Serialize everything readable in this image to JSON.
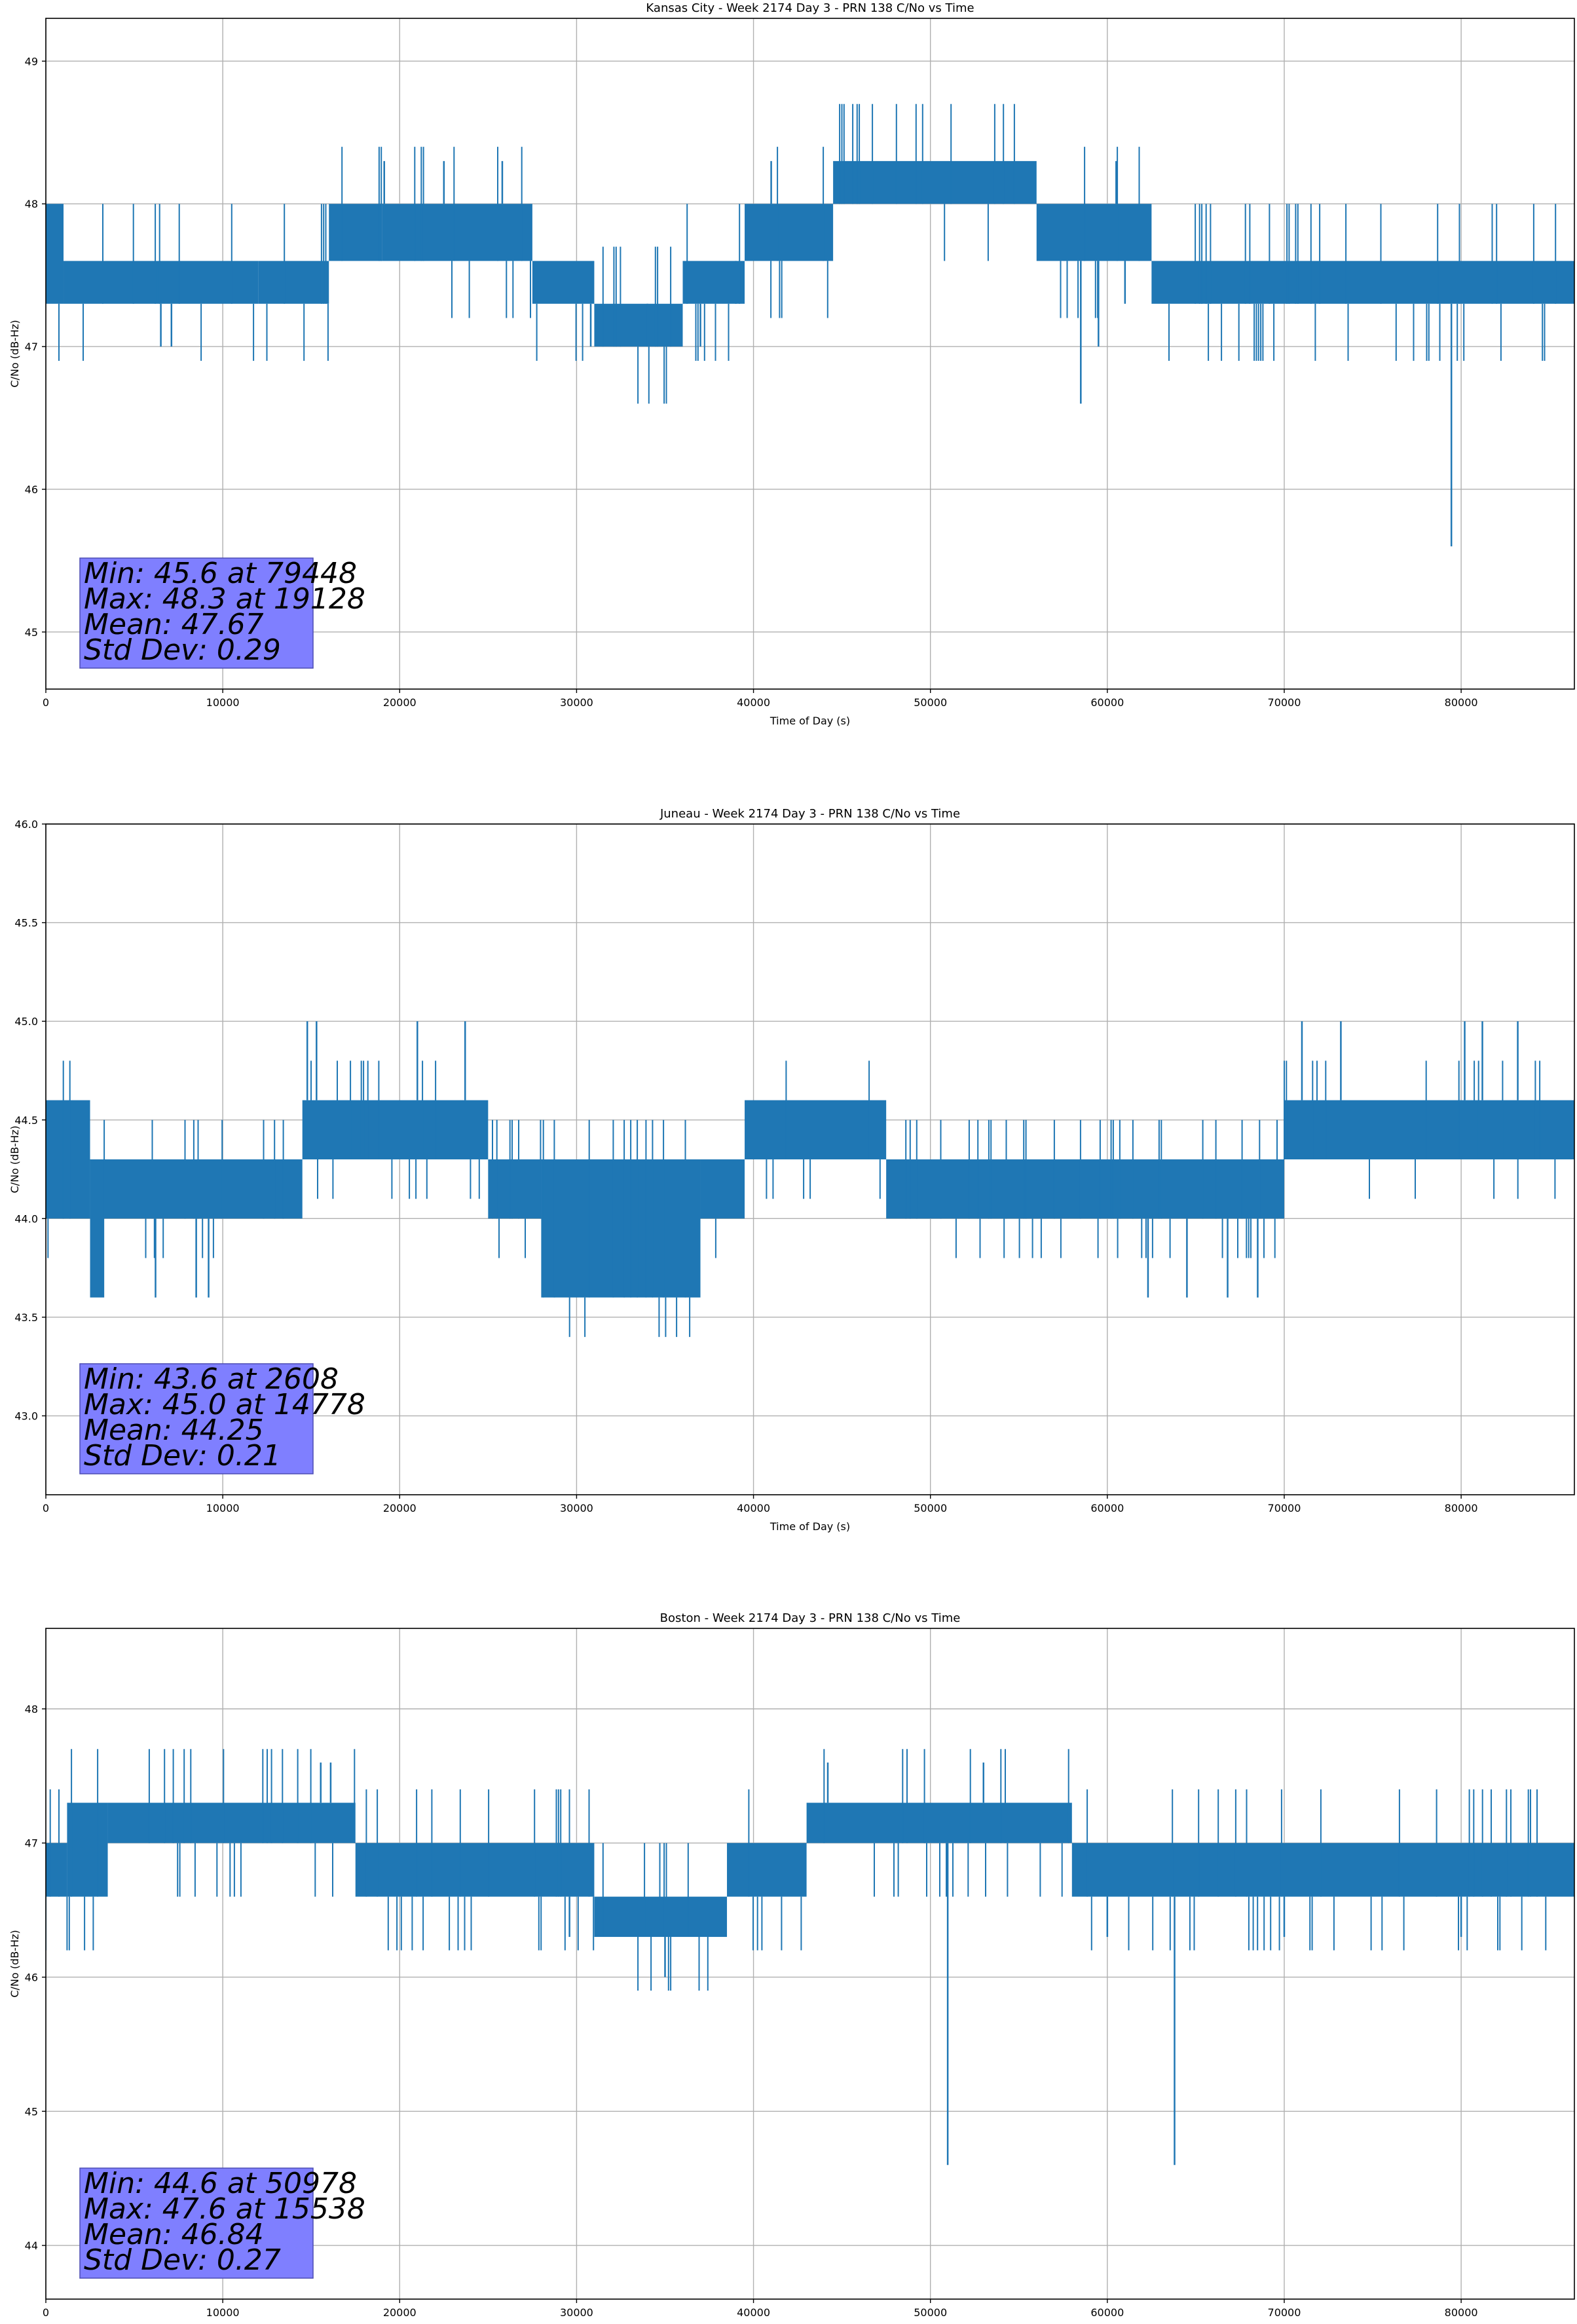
{
  "colors": {
    "line": "#1f77b4",
    "grid": "#b0b0b0",
    "stats_box": "#7f7fff",
    "stats_box_edge": "#4d4db3",
    "axes": "#000000"
  },
  "chart_data": [
    {
      "type": "line",
      "title": "Kansas City - Week 2174 Day 3 - PRN 138 C/No vs Time",
      "xlabel": "Time of Day (s)",
      "ylabel": "C/No (dB-Hz)",
      "xlim": [
        0,
        86400
      ],
      "ylim": [
        44.6,
        49.3
      ],
      "xticks": [
        0,
        10000,
        20000,
        30000,
        40000,
        50000,
        60000,
        70000,
        80000
      ],
      "yticks": [
        45,
        46,
        47,
        48,
        49
      ],
      "ytick_labels": [
        "45",
        "46",
        "47",
        "48",
        "49"
      ],
      "grid": true,
      "stats": [
        "Min: 45.6 at 79448",
        "Max: 48.3 at 19128",
        "Mean: 47.67",
        "Std Dev: 0.29"
      ],
      "series": [
        {
          "name": "C/No",
          "bands": [
            {
              "x0": 0,
              "x1": 1000,
              "low": 47.3,
              "high": 48.0
            },
            {
              "x0": 1000,
              "x1": 12000,
              "low": 47.3,
              "high": 47.6
            },
            {
              "x0": 12000,
              "x1": 16000,
              "low": 47.3,
              "high": 47.6
            },
            {
              "x0": 16000,
              "x1": 19000,
              "low": 47.6,
              "high": 48.0
            },
            {
              "x0": 19000,
              "x1": 27500,
              "low": 47.6,
              "high": 48.0
            },
            {
              "x0": 27500,
              "x1": 31000,
              "low": 47.3,
              "high": 47.6
            },
            {
              "x0": 31000,
              "x1": 36000,
              "low": 47.0,
              "high": 47.3
            },
            {
              "x0": 36000,
              "x1": 39500,
              "low": 47.3,
              "high": 47.6
            },
            {
              "x0": 39500,
              "x1": 44500,
              "low": 47.6,
              "high": 48.0
            },
            {
              "x0": 44500,
              "x1": 56000,
              "low": 48.0,
              "high": 48.3
            },
            {
              "x0": 56000,
              "x1": 62500,
              "low": 47.6,
              "high": 48.0
            },
            {
              "x0": 62500,
              "x1": 86400,
              "low": 47.3,
              "high": 47.6
            }
          ],
          "spikes": [
            {
              "x": 6500,
              "y": 47.0
            },
            {
              "x": 7100,
              "y": 47.0
            },
            {
              "x": 19128,
              "y": 48.3
            },
            {
              "x": 22500,
              "y": 48.3
            },
            {
              "x": 25800,
              "y": 48.3
            },
            {
              "x": 30800,
              "y": 47.0
            },
            {
              "x": 34000,
              "y": 47.0
            },
            {
              "x": 37000,
              "y": 47.0
            },
            {
              "x": 39000,
              "y": 47.3
            },
            {
              "x": 41000,
              "y": 48.3
            },
            {
              "x": 58500,
              "y": 46.6
            },
            {
              "x": 59500,
              "y": 47.0
            },
            {
              "x": 60500,
              "y": 48.3
            },
            {
              "x": 61000,
              "y": 47.3
            },
            {
              "x": 79448,
              "y": 45.6
            }
          ]
        }
      ]
    },
    {
      "type": "line",
      "title": "Juneau - Week 2174 Day 3 - PRN 138 C/No vs Time",
      "xlabel": "Time of Day (s)",
      "ylabel": "C/No (dB-Hz)",
      "xlim": [
        0,
        86400
      ],
      "ylim": [
        42.6,
        46.0
      ],
      "xticks": [
        0,
        10000,
        20000,
        30000,
        40000,
        50000,
        60000,
        70000,
        80000
      ],
      "yticks": [
        43.0,
        43.5,
        44.0,
        44.5,
        45.0,
        45.5,
        46.0
      ],
      "ytick_labels": [
        "43.0",
        "43.5",
        "44.0",
        "44.5",
        "45.0",
        "45.5",
        "46.0"
      ],
      "grid": true,
      "stats": [
        "Min: 43.6 at 2608",
        "Max: 45.0 at 14778",
        "Mean: 44.25",
        "Std Dev: 0.21"
      ],
      "series": [
        {
          "name": "C/No",
          "bands": [
            {
              "x0": 0,
              "x1": 2500,
              "low": 44.0,
              "high": 44.6
            },
            {
              "x0": 2500,
              "x1": 3300,
              "low": 43.6,
              "high": 44.3
            },
            {
              "x0": 3300,
              "x1": 14500,
              "low": 44.0,
              "high": 44.3
            },
            {
              "x0": 14500,
              "x1": 25000,
              "low": 44.3,
              "high": 44.6
            },
            {
              "x0": 25000,
              "x1": 28000,
              "low": 44.0,
              "high": 44.3
            },
            {
              "x0": 28000,
              "x1": 37000,
              "low": 43.6,
              "high": 44.3
            },
            {
              "x0": 37000,
              "x1": 39500,
              "low": 44.0,
              "high": 44.3
            },
            {
              "x0": 39500,
              "x1": 47500,
              "low": 44.3,
              "high": 44.6
            },
            {
              "x0": 47500,
              "x1": 70000,
              "low": 44.0,
              "high": 44.3
            },
            {
              "x0": 70000,
              "x1": 86400,
              "low": 44.3,
              "high": 44.6
            }
          ],
          "spikes": [
            {
              "x": 14778,
              "y": 45.0
            },
            {
              "x": 15300,
              "y": 45.0
            },
            {
              "x": 21000,
              "y": 45.0
            },
            {
              "x": 23700,
              "y": 45.0
            },
            {
              "x": 6200,
              "y": 43.6
            },
            {
              "x": 8500,
              "y": 43.6
            },
            {
              "x": 9200,
              "y": 43.6
            },
            {
              "x": 62300,
              "y": 43.6
            },
            {
              "x": 64500,
              "y": 43.6
            },
            {
              "x": 66800,
              "y": 43.6
            },
            {
              "x": 68500,
              "y": 43.6
            },
            {
              "x": 71000,
              "y": 45.0
            },
            {
              "x": 73200,
              "y": 45.0
            },
            {
              "x": 80200,
              "y": 45.0
            },
            {
              "x": 81200,
              "y": 45.0
            },
            {
              "x": 83200,
              "y": 45.0
            }
          ]
        }
      ]
    },
    {
      "type": "line",
      "title": "Boston - Week 2174 Day 3 - PRN 138 C/No vs Time",
      "xlabel": "Time of Day (s)",
      "ylabel": "C/No (dB-Hz)",
      "xlim": [
        0,
        86400
      ],
      "ylim": [
        43.6,
        48.6
      ],
      "xticks": [
        0,
        10000,
        20000,
        30000,
        40000,
        50000,
        60000,
        70000,
        80000
      ],
      "yticks": [
        44,
        45,
        46,
        47,
        48
      ],
      "ytick_labels": [
        "44",
        "45",
        "46",
        "47",
        "48"
      ],
      "grid": true,
      "stats": [
        "Min: 44.6 at 50978",
        "Max: 47.6 at 15538",
        "Mean: 46.84",
        "Std Dev: 0.27"
      ],
      "series": [
        {
          "name": "C/No",
          "bands": [
            {
              "x0": 0,
              "x1": 1200,
              "low": 46.6,
              "high": 47.0
            },
            {
              "x0": 1200,
              "x1": 3500,
              "low": 46.6,
              "high": 47.3
            },
            {
              "x0": 3500,
              "x1": 17500,
              "low": 47.0,
              "high": 47.3
            },
            {
              "x0": 17500,
              "x1": 31000,
              "low": 46.6,
              "high": 47.0
            },
            {
              "x0": 31000,
              "x1": 38500,
              "low": 46.3,
              "high": 46.6
            },
            {
              "x0": 38500,
              "x1": 43000,
              "low": 46.6,
              "high": 47.0
            },
            {
              "x0": 43000,
              "x1": 58000,
              "low": 47.0,
              "high": 47.3
            },
            {
              "x0": 58000,
              "x1": 86400,
              "low": 46.6,
              "high": 47.0
            }
          ],
          "spikes": [
            {
              "x": 15538,
              "y": 47.6
            },
            {
              "x": 16100,
              "y": 47.6
            },
            {
              "x": 29600,
              "y": 46.3
            },
            {
              "x": 35000,
              "y": 46.0
            },
            {
              "x": 44200,
              "y": 47.6
            },
            {
              "x": 50978,
              "y": 44.6
            },
            {
              "x": 53000,
              "y": 47.6
            },
            {
              "x": 63800,
              "y": 44.6
            },
            {
              "x": 60000,
              "y": 46.3
            },
            {
              "x": 70000,
              "y": 46.3
            },
            {
              "x": 80000,
              "y": 46.3
            }
          ]
        }
      ]
    }
  ]
}
